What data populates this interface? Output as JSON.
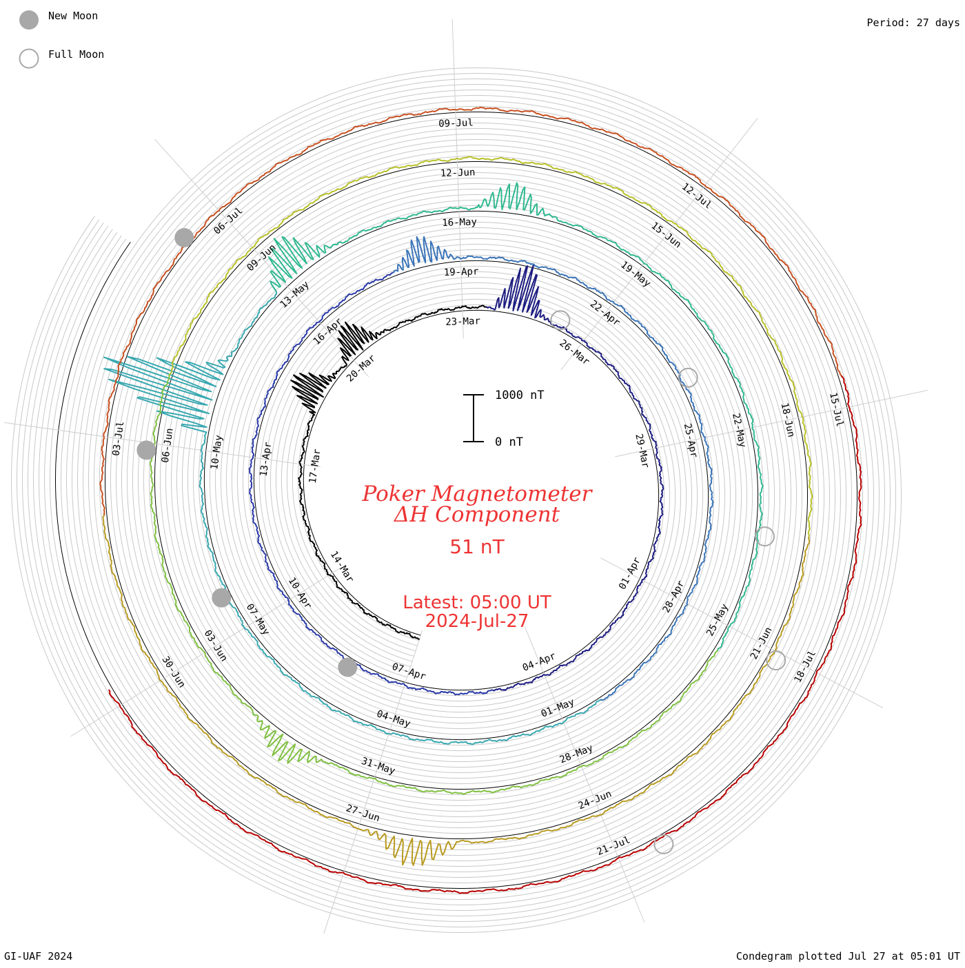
{
  "legend": {
    "new_moon": "New Moon",
    "full_moon": "Full Moon",
    "moon_fill": "#a8a8a8",
    "moon_stroke": "#a8a8a8"
  },
  "period_text": "Period: 27 days",
  "footer": {
    "left": "GI-UAF 2024",
    "right": "Condegram plotted Jul 27 at 05:01 UT"
  },
  "center": {
    "title_line1": "Poker Magnetometer",
    "title_line2": "ΔH Component",
    "value": "51 nT",
    "latest_line1": "Latest: 05:00 UT",
    "latest_line2": "2024-Jul-27",
    "title_color": "#ee3333",
    "scale_top": "1000 nT",
    "scale_bottom": "0 nT"
  },
  "chart_data": {
    "type": "line",
    "period_days": 27,
    "start_date": "2024-03-11",
    "end_date": "2024-07-27",
    "series_colors": [
      "#000000",
      "#1c1c80",
      "#2a3aa8",
      "#3a74b8",
      "#38a8b0",
      "#30b890",
      "#7fc040",
      "#b8c028",
      "#b89a20",
      "#c85020",
      "#b80000"
    ],
    "date_labels": [
      {
        "text": "14-Mar",
        "day": 3
      },
      {
        "text": "17-Mar",
        "day": 6
      },
      {
        "text": "20-Mar",
        "day": 9
      },
      {
        "text": "23-Mar",
        "day": 12
      },
      {
        "text": "26-Mar",
        "day": 15
      },
      {
        "text": "29-Mar",
        "day": 18
      },
      {
        "text": "01-Apr",
        "day": 21
      },
      {
        "text": "04-Apr",
        "day": 24
      },
      {
        "text": "07-Apr",
        "day": 27
      },
      {
        "text": "10-Apr",
        "day": 30
      },
      {
        "text": "13-Apr",
        "day": 33
      },
      {
        "text": "16-Apr",
        "day": 36
      },
      {
        "text": "19-Apr",
        "day": 39
      },
      {
        "text": "22-Apr",
        "day": 42
      },
      {
        "text": "25-Apr",
        "day": 45
      },
      {
        "text": "28-Apr",
        "day": 48
      },
      {
        "text": "01-May",
        "day": 51
      },
      {
        "text": "04-May",
        "day": 54
      },
      {
        "text": "07-May",
        "day": 57
      },
      {
        "text": "10-May",
        "day": 60
      },
      {
        "text": "13-May",
        "day": 63
      },
      {
        "text": "16-May",
        "day": 66
      },
      {
        "text": "19-May",
        "day": 69
      },
      {
        "text": "22-May",
        "day": 72
      },
      {
        "text": "25-May",
        "day": 75
      },
      {
        "text": "28-May",
        "day": 78
      },
      {
        "text": "31-May",
        "day": 81
      },
      {
        "text": "03-Jun",
        "day": 84
      },
      {
        "text": "06-Jun",
        "day": 87
      },
      {
        "text": "09-Jun",
        "day": 90
      },
      {
        "text": "12-Jun",
        "day": 93
      },
      {
        "text": "15-Jun",
        "day": 96
      },
      {
        "text": "18-Jun",
        "day": 99
      },
      {
        "text": "21-Jun",
        "day": 102
      },
      {
        "text": "24-Jun",
        "day": 105
      },
      {
        "text": "27-Jun",
        "day": 108
      },
      {
        "text": "30-Jun",
        "day": 111
      },
      {
        "text": "03-Jul",
        "day": 114
      },
      {
        "text": "06-Jul",
        "day": 117
      },
      {
        "text": "09-Jul",
        "day": 120
      },
      {
        "text": "12-Jul",
        "day": 123
      },
      {
        "text": "15-Jul",
        "day": 126
      },
      {
        "text": "18-Jul",
        "day": 129
      },
      {
        "text": "21-Jul",
        "day": 132
      }
    ],
    "new_moons": [
      {
        "date": "2024-04-08",
        "day": 28.2
      },
      {
        "date": "2024-05-08",
        "day": 57.6
      },
      {
        "date": "2024-06-06",
        "day": 86.9
      },
      {
        "date": "2024-07-05",
        "day": 116.5
      }
    ],
    "full_moons": [
      {
        "date": "2024-03-25",
        "day": 14.3
      },
      {
        "date": "2024-04-23",
        "day": 43.9
      },
      {
        "date": "2024-05-23",
        "day": 73.6
      },
      {
        "date": "2024-06-22",
        "day": 102.1
      },
      {
        "date": "2024-07-21",
        "day": 131.5
      }
    ],
    "disturbances": [
      {
        "day": 7.5,
        "amplitude_nT": 800
      },
      {
        "day": 9.0,
        "amplitude_nT": 700
      },
      {
        "day": 13.0,
        "amplitude_nT": 1100
      },
      {
        "day": 38.0,
        "amplitude_nT": 600
      },
      {
        "day": 60.5,
        "amplitude_nT": 2600
      },
      {
        "day": 63.0,
        "amplitude_nT": 900
      },
      {
        "day": 66.5,
        "amplitude_nT": 600
      },
      {
        "day": 82.0,
        "amplitude_nT": 500
      },
      {
        "day": 107.0,
        "amplitude_nT": 600
      },
      {
        "day": 138.5,
        "amplitude_nT": 500
      }
    ],
    "scale_bar_nT": [
      0,
      1000
    ],
    "latest_value_nT": 51
  }
}
